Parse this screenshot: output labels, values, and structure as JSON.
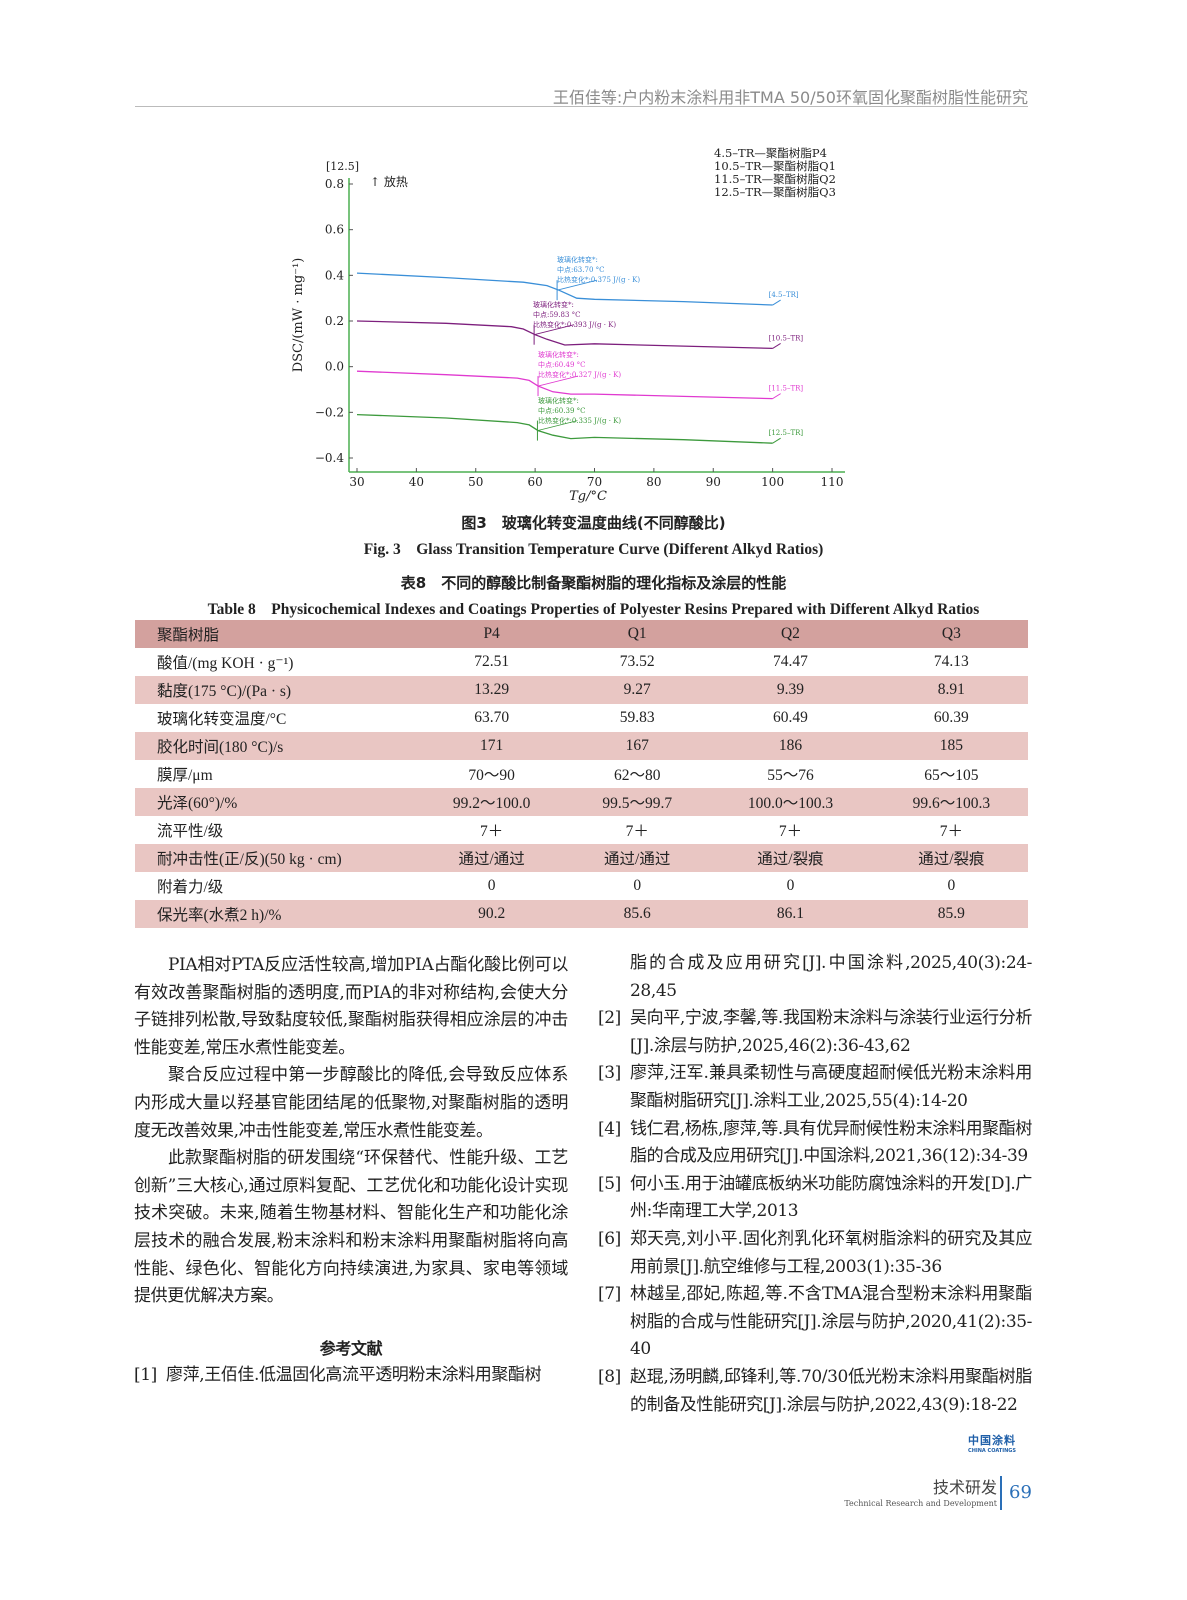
{
  "running_head": "王佰佳等:户内粉末涂料用非TMA 50/50环氧固化聚酯树脂性能研究",
  "figure": {
    "caption_cn": "图3　玻璃化转变温度曲线(不同醇酸比)",
    "caption_en": "Fig. 3　Glass Transition Temperature Curve (Different Alkyd Ratios)"
  },
  "chart_data": {
    "type": "line",
    "xlabel": "Tg/°C",
    "ylabel": "DSC/(mW · mg⁻¹)",
    "corner_label": "[12.5]",
    "exo_label": "↑ 放热",
    "xlim": [
      30,
      110
    ],
    "ylim": [
      -0.4,
      0.8
    ],
    "xticks": [
      "30",
      "40",
      "50",
      "60",
      "70",
      "80",
      "90",
      "100",
      "110"
    ],
    "yticks": [
      "−0.4",
      "−0.2",
      "0.0",
      "0.2",
      "0.4",
      "0.6",
      "0.8"
    ],
    "grid": false,
    "legend_position": "top-right",
    "legend": [
      "4.5–TR—聚酯树脂P4",
      "10.5–TR—聚酯树脂Q1",
      "11.5–TR—聚酯树脂Q2",
      "12.5–TR—聚酯树脂Q3"
    ],
    "series": [
      {
        "name": "[4.5–TR]",
        "color": "#3a8fd8",
        "x": [
          30,
          45,
          58,
          62,
          64,
          67,
          70,
          85,
          100
        ],
        "y": [
          0.41,
          0.39,
          0.37,
          0.355,
          0.335,
          0.3,
          0.295,
          0.285,
          0.27
        ],
        "annotation": [
          "玻璃化转变*:",
          "中点:63.70 °C",
          "比热变化*:0.375 J/(g · K)"
        ]
      },
      {
        "name": "[10.5–TR]",
        "color": "#7d1f7d",
        "x": [
          30,
          45,
          56,
          58,
          60,
          62,
          65,
          70,
          85,
          100
        ],
        "y": [
          0.2,
          0.19,
          0.175,
          0.165,
          0.14,
          0.12,
          0.095,
          0.1,
          0.09,
          0.08
        ],
        "annotation": [
          "玻璃化转变*:",
          "中点:59.83 °C",
          "比热变化*:0.393 J/(g · K)"
        ]
      },
      {
        "name": "[11.5–TR]",
        "color": "#e03ad0",
        "x": [
          30,
          45,
          57,
          59,
          60.5,
          63,
          66,
          70,
          85,
          100
        ],
        "y": [
          -0.02,
          -0.035,
          -0.05,
          -0.06,
          -0.085,
          -0.11,
          -0.12,
          -0.12,
          -0.13,
          -0.14
        ],
        "annotation": [
          "玻璃化转变*:",
          "中点:60.49 °C",
          "比热变化*:0.327 J/(g · K)"
        ]
      },
      {
        "name": "[12.5–TR]",
        "color": "#3d9a3d",
        "x": [
          30,
          45,
          57,
          59,
          60.5,
          63,
          66,
          70,
          85,
          100
        ],
        "y": [
          -0.21,
          -0.225,
          -0.245,
          -0.255,
          -0.28,
          -0.3,
          -0.315,
          -0.31,
          -0.32,
          -0.335
        ],
        "annotation": [
          "玻璃化转变*:",
          "中点:60.39 °C",
          "比热变化*:0.335 J/(g · K)"
        ]
      }
    ]
  },
  "table": {
    "caption_cn": "表8　不同的醇酸比制备聚酯树脂的理化指标及涂层的性能",
    "caption_en": "Table 8　Physicochemical Indexes and Coatings Properties of Polyester Resins Prepared with Different Alkyd Ratios",
    "header": [
      "聚酯树脂",
      "P4",
      "Q1",
      "Q2",
      "Q3"
    ],
    "rows": [
      [
        "酸值/(mg KOH · g⁻¹)",
        "72.51",
        "73.52",
        "74.47",
        "74.13"
      ],
      [
        "黏度(175 °C)/(Pa · s)",
        "13.29",
        "9.27",
        "9.39",
        "8.91"
      ],
      [
        "玻璃化转变温度/°C",
        "63.70",
        "59.83",
        "60.49",
        "60.39"
      ],
      [
        "胶化时间(180 °C)/s",
        "171",
        "167",
        "186",
        "185"
      ],
      [
        "膜厚/μm",
        "70～90",
        "62～80",
        "55～76",
        "65～105"
      ],
      [
        "光泽(60°)/%",
        "99.2～100.0",
        "99.5～99.7",
        "100.0～100.3",
        "99.6～100.3"
      ],
      [
        "流平性/级",
        "7＋",
        "7＋",
        "7＋",
        "7＋"
      ],
      [
        "耐冲击性(正/反)(50 kg · cm)",
        "通过/通过",
        "通过/通过",
        "通过/裂痕",
        "通过/裂痕"
      ],
      [
        "附着力/级",
        "0",
        "0",
        "0",
        "0"
      ],
      [
        "保光率(水煮2 h)/%",
        "90.2",
        "85.6",
        "86.1",
        "85.9"
      ]
    ]
  },
  "body": {
    "paragraphs": [
      "PIA相对PTA反应活性较高,增加PIA占酯化酸比例可以有效改善聚酯树脂的透明度,而PIA的非对称结构,会使大分子链排列松散,导致黏度较低,聚酯树脂获得相应涂层的冲击性能变差,常压水煮性能变差。",
      "聚合反应过程中第一步醇酸比的降低,会导致反应体系内形成大量以羟基官能团结尾的低聚物,对聚酯树脂的透明度无改善效果,冲击性能变差,常压水煮性能变差。",
      "此款聚酯树脂的研发围绕“环保替代、性能升级、工艺创新”三大核心,通过原料复配、工艺优化和功能化设计实现技术突破。未来,随着生物基材料、智能化生产和功能化涂层技术的融合发展,粉末涂料和粉末涂料用聚酯树脂将向高性能、绿色化、智能化方向持续演进,为家具、家电等领域提供更优解决方案。"
    ],
    "references_title": "参考文献",
    "ref1_part1": "廖萍,王佰佳.低温固化高流平透明粉末涂料用聚酯树",
    "ref1_part2": "脂的合成及应用研究[J].中国涂料,2025,40(3):24-28,45",
    "references": [
      {
        "n": "[1]"
      },
      {
        "n": "[2]",
        "t": "吴向平,宁波,李馨,等.我国粉末涂料与涂装行业运行分析[J].涂层与防护,2025,46(2):36-43,62"
      },
      {
        "n": "[3]",
        "t": "廖萍,汪军.兼具柔韧性与高硬度超耐候低光粉末涂料用聚酯树脂研究[J].涂料工业,2025,55(4):14-20"
      },
      {
        "n": "[4]",
        "t": "钱仁君,杨栋,廖萍,等.具有优异耐候性粉末涂料用聚酯树脂的合成及应用研究[J].中国涂料,2021,36(12):34-39"
      },
      {
        "n": "[5]",
        "t": "何小玉.用于油罐底板纳米功能防腐蚀涂料的开发[D].广州:华南理工大学,2013"
      },
      {
        "n": "[6]",
        "t": "郑天亮,刘小平.固化剂乳化环氧树脂涂料的研究及其应用前景[J].航空维修与工程,2003(1):35-36"
      },
      {
        "n": "[7]",
        "t": "林越呈,邵妃,陈超,等.不含TMA混合型粉末涂料用聚酯树脂的合成与性能研究[J].涂层与防护,2020,41(2):35-40"
      },
      {
        "n": "[8]",
        "t": "赵琨,汤明麟,邱锋利,等.70/30低光粉末涂料用聚酯树脂的制备及性能研究[J].涂层与防护,2022,43(9):18-22"
      }
    ]
  },
  "logo": {
    "cn": "中国涂料",
    "en": "CHINA COATINGS"
  },
  "footer": {
    "section_cn": "技术研发",
    "section_en": "Technical Research and Development",
    "page": "69",
    "accent": "#2a6fb8"
  }
}
